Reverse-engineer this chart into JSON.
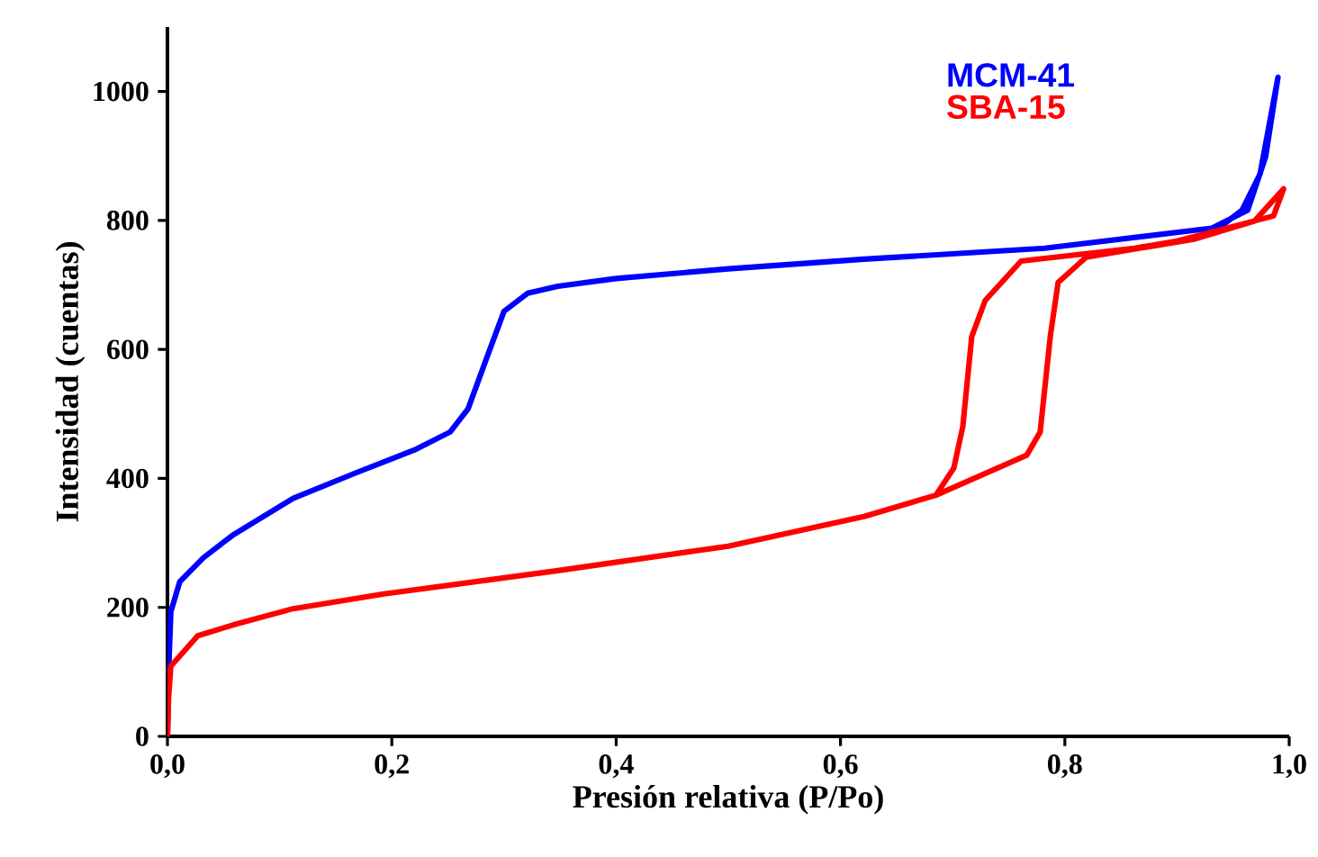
{
  "chart_data": {
    "type": "line",
    "xlabel": "Presión relativa (P/Po)",
    "ylabel": "Intensidad (cuentas)",
    "xlim": [
      0,
      1
    ],
    "ylim": [
      0,
      1100
    ],
    "xticks": [
      {
        "value": 0,
        "label": "0,0"
      },
      {
        "value": 0.2,
        "label": "0,2"
      },
      {
        "value": 0.4,
        "label": "0,4"
      },
      {
        "value": 0.6,
        "label": "0,6"
      },
      {
        "value": 0.8,
        "label": "0,8"
      },
      {
        "value": 1,
        "label": "1,0"
      }
    ],
    "yticks": [
      0,
      200,
      400,
      600,
      800,
      1000
    ],
    "grid": false,
    "legend": "top right",
    "marker": "none",
    "line_style": "solid",
    "series": [
      {
        "name": "MCM-41",
        "color": "#0000ff",
        "x": [
          0,
          0.001,
          0.003,
          0.011,
          0.032,
          0.059,
          0.112,
          0.167,
          0.22,
          0.252,
          0.268,
          0.284,
          0.3,
          0.321,
          0.348,
          0.4,
          0.5,
          0.621,
          0.782,
          0.931,
          0.963,
          0.979,
          0.99,
          0.985,
          0.974,
          0.958,
          0.937
        ],
        "values": [
          0,
          100,
          193,
          240,
          277,
          313,
          369,
          408,
          444,
          472,
          508,
          584,
          659,
          687,
          698,
          710,
          725,
          740,
          757,
          788,
          816,
          899,
          1022,
          975,
          872,
          816,
          788
        ]
      },
      {
        "name": "SBA-15",
        "color": "#ff0000",
        "x": [
          0,
          0.001,
          0.003,
          0.027,
          0.059,
          0.112,
          0.193,
          0.348,
          0.5,
          0.621,
          0.685,
          0.766,
          0.778,
          0.787,
          0.794,
          0.819,
          0.915,
          0.969,
          0.995,
          0.986,
          0.9,
          0.862,
          0.761,
          0.729,
          0.717,
          0.709,
          0.701,
          0.685
        ],
        "values": [
          0,
          60,
          109,
          156,
          173,
          198,
          221,
          257,
          295,
          341,
          374,
          436,
          472,
          620,
          704,
          743,
          771,
          799,
          849,
          807,
          768,
          757,
          737,
          676,
          620,
          480,
          416,
          374
        ]
      }
    ]
  }
}
